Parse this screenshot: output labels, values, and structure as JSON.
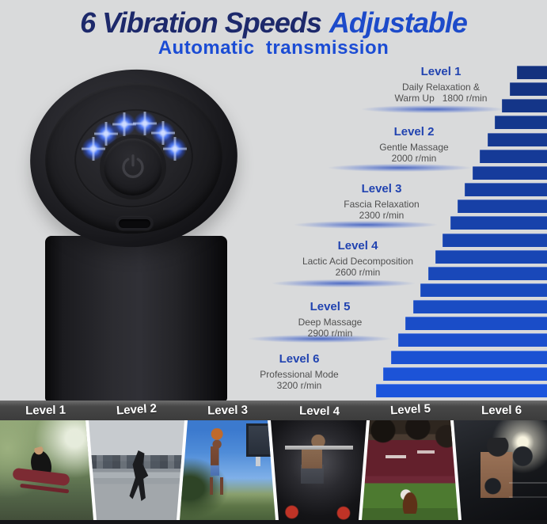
{
  "header": {
    "title": {
      "dark": "6 Vibration Speeds",
      "light": "Adjustable"
    },
    "subtitle": "Automatic  transmission"
  },
  "device": {
    "led_count": 6,
    "led_color": "#4f79f2",
    "controls": [
      "power-button",
      "usb-c-port"
    ]
  },
  "levels": [
    {
      "name": "Level 1",
      "line1": "Daily Relaxation &",
      "line2": "Warm Up   1800 r/min",
      "rpm": 1800
    },
    {
      "name": "Level 2",
      "line1": "Gentle Massage",
      "line2": "2000 r/min",
      "rpm": 2000
    },
    {
      "name": "Level 3",
      "line1": "Fascia Relaxation",
      "line2": "2300 r/min",
      "rpm": 2300
    },
    {
      "name": "Level 4",
      "line1": "Lactic Acid Decomposition",
      "line2": "2600 r/min",
      "rpm": 2600
    },
    {
      "name": "Level 5",
      "line1": "Deep Massage",
      "line2": "2900 r/min",
      "rpm": 2900
    },
    {
      "name": "Level 6",
      "line1": "Professional Mode",
      "line2": "3200 r/min",
      "rpm": 3200
    }
  ],
  "stairs": {
    "count": 20,
    "top_color": "#13317E",
    "bottom_color": "#1C55DC"
  },
  "footer": {
    "labels": [
      "Level 1",
      "Level 2",
      "Level 3",
      "Level 4",
      "Level 5",
      "Level 6"
    ]
  },
  "photos": [
    {
      "scene": "woman-stretching-outdoors"
    },
    {
      "scene": "man-running-city"
    },
    {
      "scene": "basketball-dunk"
    },
    {
      "scene": "barbell-squat-gym"
    },
    {
      "scene": "football-linemen"
    },
    {
      "scene": "boxer-training"
    }
  ],
  "colors": {
    "background": "#D9DADB",
    "title_dark": "#1D296B",
    "title_blue": "#1D4BCA",
    "subtitle_blue": "#1B4CD4",
    "level_name_blue": "#2143B0",
    "footer_bar": "#424242"
  }
}
